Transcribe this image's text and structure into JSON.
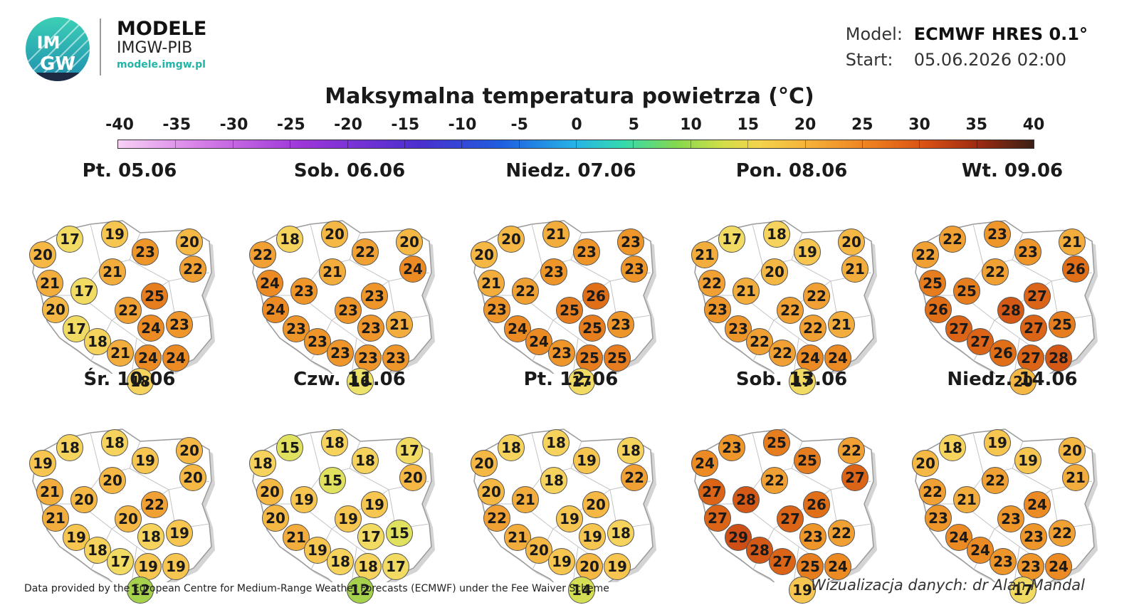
{
  "brand": {
    "logo_text_top": "IM",
    "logo_text_bottom": "GW",
    "title": "MODELE",
    "subtitle": "IMGW-PIB",
    "url": "modele.imgw.pl"
  },
  "info": {
    "model_label": "Model:",
    "model_value": "ECMWF HRES 0.1°",
    "start_label": "Start:",
    "start_value": "05.06.2026 02:00"
  },
  "title": "Maksymalna temperatura powietrza (°C)",
  "scale": {
    "ticks": [
      "-40",
      "-35",
      "-30",
      "-25",
      "-20",
      "-15",
      "-10",
      "-5",
      "0",
      "5",
      "10",
      "15",
      "20",
      "25",
      "30",
      "35",
      "40"
    ],
    "min": -40,
    "max": 40
  },
  "days": [
    {
      "date": "Pt. 05.06",
      "temps": [
        20,
        17,
        19,
        23,
        20,
        21,
        22,
        21,
        17,
        25,
        20,
        22,
        17,
        24,
        23,
        18,
        21,
        24,
        24,
        18
      ]
    },
    {
      "date": "Sob. 06.06",
      "temps": [
        22,
        18,
        20,
        22,
        20,
        24,
        24,
        21,
        23,
        23,
        24,
        23,
        23,
        23,
        21,
        23,
        23,
        23,
        23,
        16
      ]
    },
    {
      "date": "Niedz. 07.06",
      "temps": [
        20,
        20,
        21,
        23,
        23,
        21,
        23,
        23,
        22,
        26,
        23,
        25,
        24,
        25,
        23,
        24,
        23,
        25,
        25,
        17
      ]
    },
    {
      "date": "Pon. 08.06",
      "temps": [
        21,
        17,
        18,
        19,
        20,
        22,
        21,
        20,
        21,
        22,
        23,
        22,
        23,
        22,
        21,
        22,
        22,
        24,
        24,
        17
      ]
    },
    {
      "date": "Wt. 09.06",
      "temps": [
        22,
        22,
        23,
        23,
        21,
        25,
        26,
        22,
        25,
        27,
        26,
        28,
        27,
        27,
        25,
        27,
        26,
        27,
        28,
        20
      ]
    },
    {
      "date": "Śr. 10.06",
      "temps": [
        19,
        18,
        18,
        19,
        20,
        21,
        20,
        20,
        20,
        22,
        21,
        20,
        19,
        18,
        19,
        18,
        17,
        19,
        19,
        12
      ]
    },
    {
      "date": "Czw. 11.06",
      "temps": [
        18,
        15,
        18,
        18,
        17,
        20,
        20,
        15,
        19,
        19,
        20,
        19,
        21,
        17,
        15,
        19,
        18,
        18,
        17,
        12
      ]
    },
    {
      "date": "Pt. 12.06",
      "temps": [
        20,
        18,
        18,
        19,
        18,
        20,
        22,
        18,
        21,
        20,
        22,
        19,
        21,
        19,
        18,
        20,
        19,
        20,
        19,
        14
      ]
    },
    {
      "date": "Sob. 13.06",
      "temps": [
        24,
        23,
        25,
        25,
        22,
        27,
        27,
        22,
        28,
        26,
        27,
        27,
        29,
        23,
        22,
        28,
        27,
        25,
        24,
        19
      ]
    },
    {
      "date": "Niedz. 14.06",
      "temps": [
        20,
        18,
        19,
        19,
        20,
        22,
        21,
        22,
        21,
        24,
        23,
        23,
        24,
        23,
        22,
        24,
        23,
        23,
        24,
        17
      ]
    }
  ],
  "credits": {
    "left": "Data provided by the European Centre for Medium-Range Weather Forecasts (ECMWF) under the Fee Waiver Scheme",
    "right": "Wizualizacja danych: dr Alan Mandal"
  }
}
